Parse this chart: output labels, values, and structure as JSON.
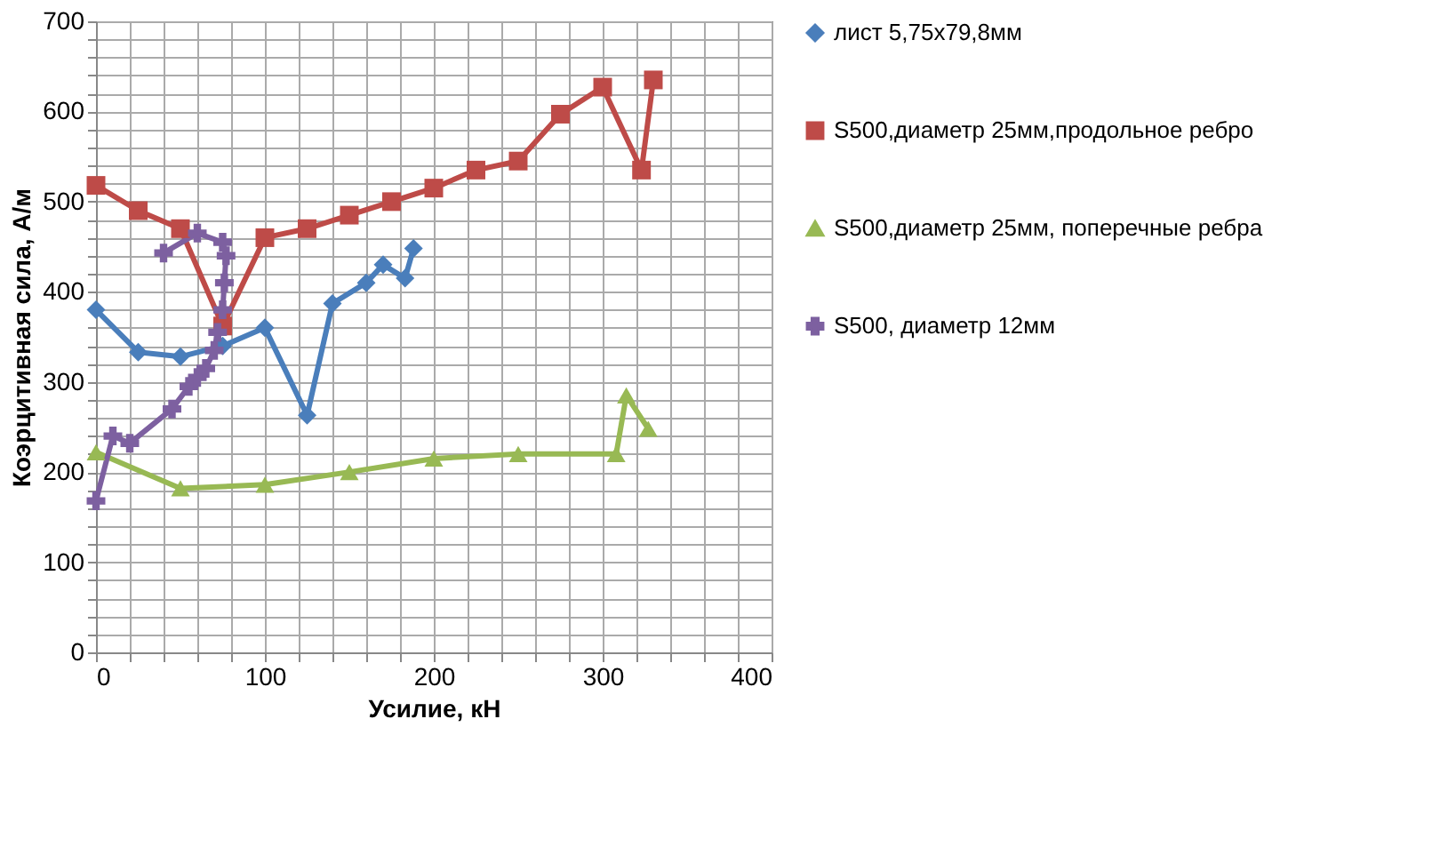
{
  "chart_data": {
    "type": "line",
    "xlabel": "Усилие, кН",
    "ylabel": "Коэрцитивная сила, А/м",
    "xlim": [
      0,
      400
    ],
    "ylim": [
      0,
      700
    ],
    "xticks": [
      0,
      {
        "value": 20,
        "label": null
      },
      {
        "value": 40,
        "label": null
      },
      {
        "value": 60,
        "label": null
      },
      {
        "value": 80,
        "label": null
      },
      100,
      {
        "value": 120,
        "label": null
      },
      {
        "value": 140,
        "label": null
      },
      {
        "value": 160,
        "label": null
      },
      {
        "value": 180,
        "label": null
      },
      200,
      {
        "value": 220,
        "label": null
      },
      {
        "value": 240,
        "label": null
      },
      {
        "value": 260,
        "label": null
      },
      {
        "value": 280,
        "label": null
      },
      300,
      {
        "value": 320,
        "label": null
      },
      {
        "value": 340,
        "label": null
      },
      {
        "value": 360,
        "label": null
      },
      {
        "value": 380,
        "label": null
      },
      400
    ],
    "yticks": [
      0,
      {
        "value": 20,
        "label": null
      },
      {
        "value": 40,
        "label": null
      },
      {
        "value": 60,
        "label": null
      },
      {
        "value": 80,
        "label": null
      },
      100,
      {
        "value": 120,
        "label": null
      },
      {
        "value": 140,
        "label": null
      },
      {
        "value": 160,
        "label": null
      },
      {
        "value": 180,
        "label": null
      },
      200,
      {
        "value": 220,
        "label": null
      },
      {
        "value": 240,
        "label": null
      },
      {
        "value": 260,
        "label": null
      },
      {
        "value": 280,
        "label": null
      },
      300,
      {
        "value": 320,
        "label": null
      },
      {
        "value": 340,
        "label": null
      },
      {
        "value": 360,
        "label": null
      },
      {
        "value": 380,
        "label": null
      },
      400,
      {
        "value": 420,
        "label": null
      },
      {
        "value": 440,
        "label": null
      },
      {
        "value": 460,
        "label": null
      },
      {
        "value": 480,
        "label": null
      },
      500,
      {
        "value": 520,
        "label": null
      },
      {
        "value": 540,
        "label": null
      },
      {
        "value": 560,
        "label": null
      },
      {
        "value": 580,
        "label": null
      },
      600,
      {
        "value": 620,
        "label": null
      },
      {
        "value": 640,
        "label": null
      },
      {
        "value": 660,
        "label": null
      },
      {
        "value": 680,
        "label": null
      },
      700
    ],
    "grid": true,
    "legend": "right",
    "line_style": "solid",
    "series": [
      {
        "name": "лист 5,75х79,8мм",
        "color": "#4a7ebb",
        "marker": "diamond",
        "x": [
          0,
          25,
          50,
          75,
          100,
          125,
          140,
          160,
          170,
          183,
          188
        ],
        "values": [
          380,
          333,
          328,
          340,
          360,
          263,
          387,
          410,
          430,
          415,
          448
        ]
      },
      {
        "name": "S500,диаметр 25мм,продольное ребро",
        "color": "#be4b48",
        "marker": "square",
        "x": [
          0,
          25,
          50,
          75,
          100,
          125,
          150,
          175,
          200,
          225,
          250,
          275,
          300,
          323,
          330
        ],
        "values": [
          518,
          490,
          470,
          362,
          460,
          470,
          485,
          500,
          515,
          535,
          545,
          597,
          627,
          535,
          635
        ]
      },
      {
        "name": "S500,диаметр 25мм, поперечные ребра",
        "color": "#98b954",
        "marker": "triangle",
        "x": [
          0,
          50,
          100,
          150,
          200,
          250,
          308,
          314,
          327
        ],
        "values": [
          222,
          182,
          186,
          200,
          215,
          220,
          220,
          285,
          248
        ]
      },
      {
        "name": "S500, диаметр 12мм",
        "color": "#7d60a0",
        "marker": "cross",
        "x": [
          0,
          10,
          20,
          45,
          55,
          60,
          65,
          70,
          72,
          75,
          76,
          77,
          75,
          60,
          40
        ],
        "values": [
          168,
          240,
          232,
          270,
          295,
          305,
          315,
          335,
          355,
          380,
          410,
          440,
          455,
          465,
          443
        ]
      }
    ]
  }
}
